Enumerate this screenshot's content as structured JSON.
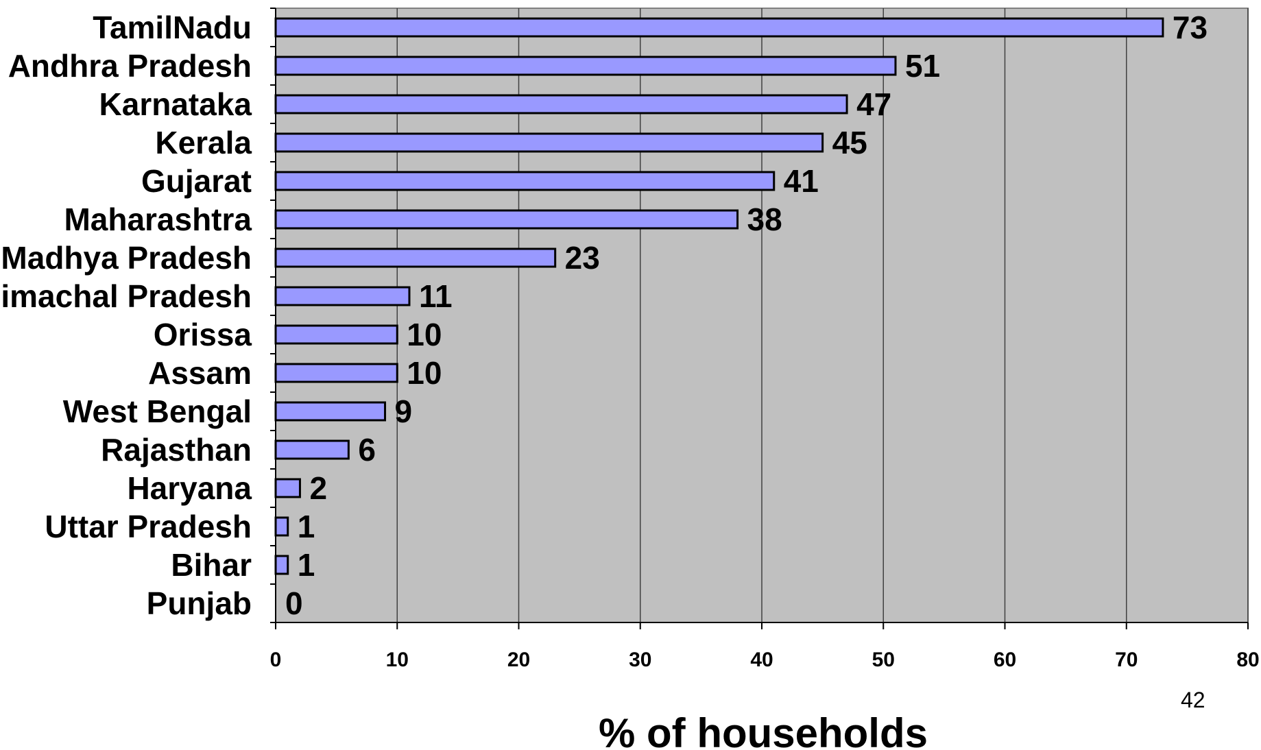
{
  "chart_data": {
    "type": "bar",
    "orientation": "horizontal",
    "categories": [
      "TamilNadu",
      "Andhra Pradesh",
      "Karnataka",
      "Kerala",
      "Gujarat",
      "Maharashtra",
      "Madhya Pradesh",
      "Himachal Pradesh",
      "Orissa",
      "Assam",
      "West Bengal",
      "Rajasthan",
      "Haryana",
      "Uttar Pradesh",
      "Bihar",
      "Punjab"
    ],
    "values": [
      73,
      51,
      47,
      45,
      41,
      38,
      23,
      11,
      10,
      10,
      9,
      6,
      2,
      1,
      1,
      0
    ],
    "data_labels": [
      "73",
      "51",
      "47",
      "45",
      "41",
      "38",
      "23",
      "11",
      "10",
      "10",
      "9",
      "6",
      "2",
      "1",
      "1",
      "0"
    ],
    "title": "",
    "xlabel": "% of households",
    "ylabel": "",
    "xlim": [
      0,
      80
    ],
    "xticks": [
      0,
      10,
      20,
      30,
      40,
      50,
      60,
      70,
      80
    ],
    "xtick_labels": [
      "0",
      "10",
      "20",
      "30",
      "40",
      "50",
      "60",
      "70",
      "80"
    ],
    "grid": "vertical",
    "legend": "none",
    "colors": {
      "bar_fill": "#9999ff",
      "bar_edge": "#000000",
      "plot_background": "#c0c0c0",
      "gridline": "#404040"
    }
  },
  "page": {
    "number": "42"
  }
}
